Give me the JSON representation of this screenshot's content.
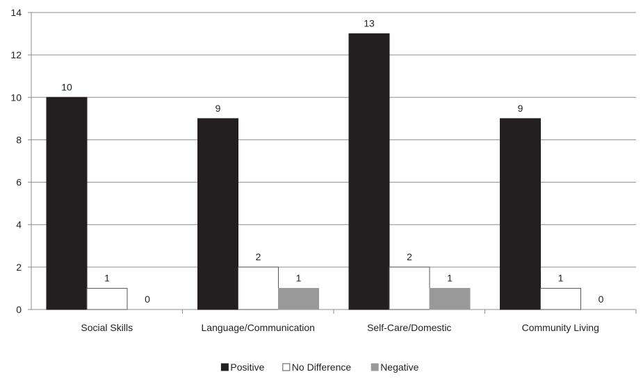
{
  "chart_data": {
    "type": "bar",
    "title": "",
    "xlabel": "",
    "ylabel": "",
    "ylim": [
      0,
      14
    ],
    "yticks": [
      0,
      2,
      4,
      6,
      8,
      10,
      12,
      14
    ],
    "grid": true,
    "legend_position": "bottom",
    "categories": [
      "Social Skills",
      "Language/Communication",
      "Self-Care/Domestic",
      "Community Living"
    ],
    "series": [
      {
        "name": "Positive",
        "values": [
          10,
          9,
          13,
          9
        ],
        "color": "#231f20",
        "stroke": "#231f20"
      },
      {
        "name": "No Difference",
        "values": [
          1,
          2,
          2,
          1
        ],
        "color": "#ffffff",
        "stroke": "#555555"
      },
      {
        "name": "Negative",
        "values": [
          0,
          1,
          1,
          0
        ],
        "color": "#999999",
        "stroke": "#999999"
      }
    ],
    "data_labels": true
  }
}
